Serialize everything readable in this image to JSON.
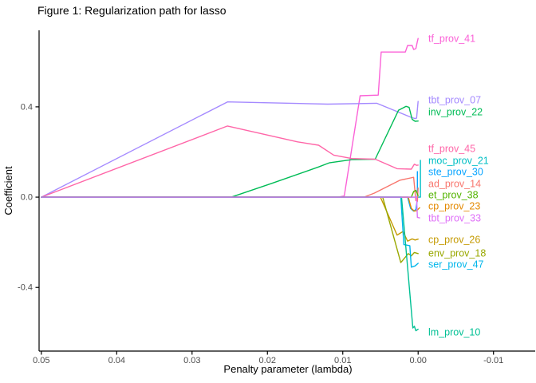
{
  "chart_data": {
    "type": "line",
    "title": "Figure 1: Regularization path for lasso",
    "xlabel": "Penalty parameter (lambda)",
    "ylabel": "Coefficient",
    "x_axis_reversed": true,
    "xlim": [
      0.0503,
      -0.0149
    ],
    "ylim": [
      -0.682,
      0.739
    ],
    "x_ticks": [
      0.05,
      0.04,
      0.03,
      0.02,
      0.01,
      0.0,
      -0.01
    ],
    "x_tick_labels": [
      "0.05",
      "0.04",
      "0.03",
      "0.02",
      "0.01",
      "0.00",
      "-0.01"
    ],
    "y_ticks": [
      0.4,
      0.0,
      -0.4
    ],
    "y_tick_labels": [
      "0.4",
      "0.0",
      "-0.4"
    ],
    "grid": false,
    "background_color": "#FFFFFF",
    "axis_color": "#000000",
    "tick_label_color": "#4D4D4D",
    "legend_position": "direct-labels-right",
    "series": [
      {
        "name": "tf_prov_41",
        "color": "#FB61D7",
        "label_value": 0.703,
        "points": [
          [
            0.05,
            0
          ],
          [
            0.0106,
            0
          ],
          [
            0.0098,
            0.005
          ],
          [
            0.0077,
            0.449
          ],
          [
            0.0053,
            0.452
          ],
          [
            0.0049,
            0.643
          ],
          [
            0.0017,
            0.643
          ],
          [
            0.0014,
            0.672
          ],
          [
            0.0008,
            0.672
          ],
          [
            0.0006,
            0.654
          ],
          [
            0.0003,
            0.658
          ],
          [
            0.0001,
            0.69
          ],
          [
            0,
            0.703
          ]
        ]
      },
      {
        "name": "tbt_prov_07",
        "color": "#A58AFF",
        "label_value": 0.431,
        "points": [
          [
            0.05,
            0
          ],
          [
            0.0253,
            0.422
          ],
          [
            0.012,
            0.412
          ],
          [
            0.0055,
            0.416
          ],
          [
            0.0008,
            0.352
          ],
          [
            0.0004,
            0.348
          ],
          [
            0.0002,
            0.35
          ],
          [
            0,
            0.424
          ]
        ]
      },
      {
        "name": "inv_prov_22",
        "color": "#00BC56",
        "label_value": 0.378,
        "points": [
          [
            0.05,
            0
          ],
          [
            0.0248,
            0
          ],
          [
            0.0195,
            0.06
          ],
          [
            0.0132,
            0.134
          ],
          [
            0.0118,
            0.152
          ],
          [
            0.0088,
            0.166
          ],
          [
            0.0057,
            0.168
          ],
          [
            0.0026,
            0.385
          ],
          [
            0.0016,
            0.402
          ],
          [
            0.0012,
            0.398
          ],
          [
            0.0008,
            0.345
          ],
          [
            0.0004,
            0.336
          ],
          [
            0,
            0.337
          ]
        ]
      },
      {
        "name": "tf_prov_45",
        "color": "#FF66A8",
        "label_value": 0.216,
        "points": [
          [
            0.05,
            0
          ],
          [
            0.0253,
            0.315
          ],
          [
            0.016,
            0.245
          ],
          [
            0.0132,
            0.23
          ],
          [
            0.0112,
            0.186
          ],
          [
            0.0088,
            0.171
          ],
          [
            0.0057,
            0.168
          ],
          [
            0.0028,
            0.126
          ],
          [
            0.0009,
            0.124
          ],
          [
            0.0005,
            0.146
          ],
          [
            0.0002,
            0.141
          ],
          [
            0,
            0.142
          ]
        ]
      },
      {
        "name": "moc_prov_21",
        "color": "#00BFC4",
        "label_value": 0.163,
        "points": [
          [
            0.05,
            0
          ],
          [
            0.0002,
            0
          ],
          [
            -0.0003,
            0
          ],
          [
            -0.0003,
            0.163
          ]
        ]
      },
      {
        "name": "ste_prov_30",
        "color": "#06A4FF",
        "label_value": 0.113,
        "points": [
          [
            0.05,
            0
          ],
          [
            0.0014,
            0
          ],
          [
            0.001,
            -0.05
          ],
          [
            0.0006,
            -0.062
          ],
          [
            0.0003,
            -0.055
          ],
          [
            0.0001,
            -0.01
          ],
          [
            0.0001,
            0.113
          ]
        ]
      },
      {
        "name": "ad_prov_14",
        "color": "#F8766D",
        "label_value": 0.06,
        "points": [
          [
            0.05,
            0
          ],
          [
            0.0072,
            0
          ],
          [
            0.0058,
            0.018
          ],
          [
            0.0024,
            0.075
          ],
          [
            0.001,
            0.085
          ],
          [
            0.0006,
            0.088
          ],
          [
            0.0004,
            0.02
          ],
          [
            0.0003,
            -0.015
          ],
          [
            0.0001,
            -0.018
          ],
          [
            0,
            0.04
          ]
        ]
      },
      {
        "name": "et_prov_38",
        "color": "#53B400",
        "label_value": 0.011,
        "points": [
          [
            0.05,
            0
          ],
          [
            0.0009,
            0
          ],
          [
            0.0006,
            0.025
          ],
          [
            0.0003,
            0.03
          ],
          [
            0,
            0.007
          ]
        ]
      },
      {
        "name": "cp_prov_23",
        "color": "#E38900",
        "label_value": -0.039,
        "points": [
          [
            0.05,
            0
          ],
          [
            0.0013,
            0
          ],
          [
            0.0009,
            -0.05
          ],
          [
            0.0005,
            -0.062
          ],
          [
            0.0002,
            -0.06
          ],
          [
            -0.0002,
            -0.047
          ]
        ]
      },
      {
        "name": "cp_prov_26",
        "color": "#C49A00",
        "label_value": -0.187,
        "points": [
          [
            0.05,
            0
          ],
          [
            0.005,
            0
          ],
          [
            0.0028,
            -0.168
          ],
          [
            0.002,
            -0.152
          ],
          [
            0.0014,
            -0.195
          ],
          [
            0.0008,
            -0.185
          ],
          [
            0.0004,
            -0.19
          ],
          [
            0,
            -0.186
          ]
        ]
      },
      {
        "name": "env_prov_18",
        "color": "#99A800",
        "label_value": -0.247,
        "points": [
          [
            0.05,
            0
          ],
          [
            0.0047,
            0
          ],
          [
            0.0023,
            -0.29
          ],
          [
            0.0013,
            -0.25
          ],
          [
            0.0009,
            -0.26
          ],
          [
            0.0005,
            -0.245
          ],
          [
            0,
            -0.25
          ]
        ]
      },
      {
        "name": "ser_prov_47",
        "color": "#00B6EB",
        "label_value": -0.297,
        "points": [
          [
            0.05,
            0
          ],
          [
            0.0023,
            0
          ],
          [
            0.0019,
            -0.21
          ],
          [
            0.0011,
            -0.215
          ],
          [
            0.0009,
            -0.31
          ],
          [
            0.0004,
            -0.305
          ],
          [
            0,
            -0.293
          ]
        ]
      },
      {
        "name": "lm_prov_10",
        "color": "#00C094",
        "label_value": -0.597,
        "points": [
          [
            0.05,
            0
          ],
          [
            0.0022,
            0
          ],
          [
            0.0007,
            -0.58
          ],
          [
            0.0005,
            -0.572
          ],
          [
            0.0003,
            -0.592
          ],
          [
            0,
            -0.585
          ]
        ]
      },
      {
        "name": "tbt_prov_33",
        "color": "#DF70F8",
        "label_value": -0.092,
        "points": [
          [
            0.05,
            0
          ],
          [
            0.0002,
            0
          ],
          [
            0.0001,
            -0.09
          ],
          [
            -0.0002,
            -0.092
          ]
        ]
      }
    ]
  }
}
